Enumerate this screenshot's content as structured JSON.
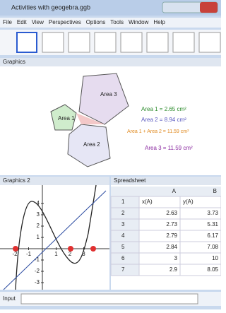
{
  "window": {
    "title": "Activities with geogebra.ggb"
  },
  "menu": [
    "File",
    "Edit",
    "View",
    "Perspectives",
    "Options",
    "Tools",
    "Window",
    "Help"
  ],
  "graphics": {
    "title": "Graphics",
    "labels": [
      "Area 1",
      "Area 2",
      "Area 3"
    ],
    "notes": [
      "Area 1 = 2.65 cm²",
      "Area 2 = 8.94 cm²",
      "Area 1 + Area 2 = 11.59 cm²",
      "Area 3 = 11.59 cm²"
    ]
  },
  "graphics2": {
    "title": "Graphics 2",
    "xticks": [
      -2,
      -1,
      1,
      2,
      3
    ],
    "yticks": [
      4,
      3,
      2,
      1,
      -1,
      -2,
      -3
    ]
  },
  "spreadsheet": {
    "title": "Spreadsheet",
    "columns": [
      "A",
      "B"
    ],
    "rows": [
      [
        "x(A)",
        "y(A)"
      ],
      [
        2.63,
        3.73
      ],
      [
        2.73,
        5.31
      ],
      [
        2.79,
        6.17
      ],
      [
        2.84,
        7.08
      ],
      [
        3,
        10
      ],
      [
        2.9,
        8.05
      ]
    ]
  },
  "input": {
    "label": "Input"
  }
}
